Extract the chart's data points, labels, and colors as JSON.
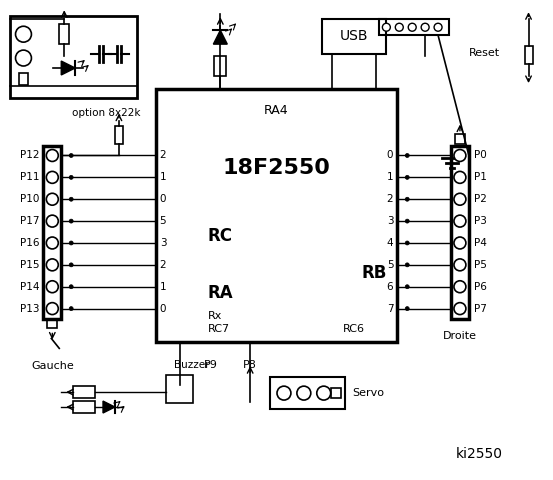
{
  "title": "ki2550",
  "bg_color": "#ffffff",
  "line_color": "#000000",
  "fig_width": 5.53,
  "fig_height": 4.8,
  "dpi": 100,
  "chip_label": "18F2550",
  "chip_sublabel": "RA4",
  "rc_label": "RC",
  "ra_label": "RA",
  "rb_label": "RB",
  "rc_pins_left": [
    "2",
    "1",
    "0",
    "5",
    "3",
    "2",
    "1",
    "0"
  ],
  "rb_pins_right": [
    "0",
    "1",
    "2",
    "3",
    "4",
    "5",
    "6",
    "7"
  ],
  "left_ports": [
    "P12",
    "P11",
    "P10",
    "P17",
    "P16",
    "P15",
    "P14",
    "P13"
  ],
  "right_ports": [
    "P0",
    "P1",
    "P2",
    "P3",
    "P4",
    "P5",
    "P6",
    "P7"
  ],
  "option_label": "option 8x22k",
  "usb_label": "USB",
  "reset_label": "Reset",
  "rx_label": "Rx",
  "rc7_label": "RC7",
  "rc6_label": "RC6",
  "gauche_label": "Gauche",
  "droite_label": "Droite",
  "buzzer_label": "Buzzer",
  "servo_label": "Servo",
  "p9_label": "P9",
  "p8_label": "P8"
}
